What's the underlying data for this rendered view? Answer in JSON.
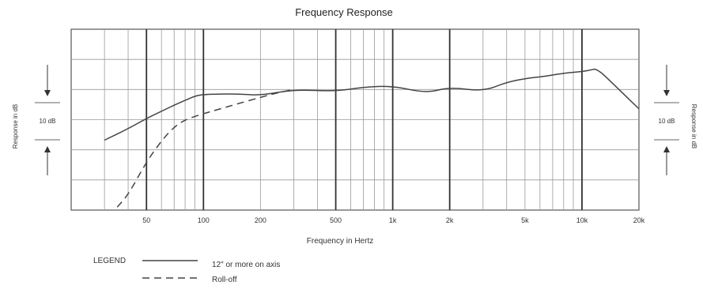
{
  "chart_data": {
    "type": "line",
    "title": "Frequency Response",
    "xlabel": "Frequency in Hertz",
    "ylabel_left": "Response in dB",
    "ylabel_right": "Response in dB",
    "scale_label": "10 dB",
    "x_scale": "log",
    "xlim": [
      20,
      20000
    ],
    "ylim": [
      -20,
      10
    ],
    "grid": true,
    "x_tick_values": [
      50,
      100,
      200,
      500,
      1000,
      2000,
      5000,
      10000,
      20000
    ],
    "x_tick_labels": [
      "50",
      "100",
      "200",
      "500",
      "1k",
      "2k",
      "5k",
      "10k",
      "20k"
    ],
    "series": [
      {
        "name": "12\" or more on axis",
        "style": "solid",
        "x": [
          30,
          40,
          50,
          60,
          70,
          80,
          90,
          100,
          150,
          200,
          300,
          500,
          700,
          1000,
          1500,
          2000,
          3000,
          4000,
          5000,
          6000,
          7000,
          8000,
          10000,
          11000,
          12000,
          15000,
          20000
        ],
        "y": [
          -8.4,
          -6.5,
          -4.8,
          -3.6,
          -2.6,
          -1.8,
          -1.1,
          -0.8,
          -0.7,
          -1.0,
          0.0,
          -0.3,
          0.4,
          0.6,
          -0.6,
          0.4,
          -0.3,
          1.2,
          1.8,
          2.1,
          2.4,
          2.7,
          3.0,
          3.2,
          3.5,
          0.6,
          -3.2
        ]
      },
      {
        "name": "Roll-off",
        "style": "dashed",
        "x": [
          35,
          40,
          50,
          60,
          70,
          80,
          100,
          120,
          150,
          200,
          250,
          300
        ],
        "y": [
          -19.5,
          -17.5,
          -12.0,
          -8.5,
          -6.2,
          -5.0,
          -4.0,
          -3.3,
          -2.4,
          -1.3,
          -0.5,
          0.0
        ]
      }
    ]
  },
  "legend": {
    "title": "LEGEND",
    "entries": [
      {
        "label": "12\" or more on axis",
        "style": "solid"
      },
      {
        "label": "Roll-off",
        "style": "dashed"
      }
    ]
  }
}
